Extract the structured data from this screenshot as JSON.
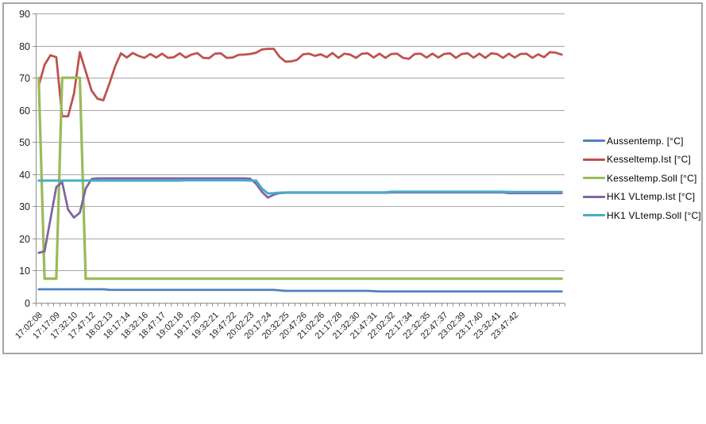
{
  "chart_data": {
    "type": "line",
    "title": "",
    "xlabel": "",
    "ylabel": "",
    "ylim": [
      0,
      90
    ],
    "y_ticks": [
      0,
      10,
      20,
      30,
      40,
      50,
      60,
      70,
      80,
      90
    ],
    "grid": true,
    "legend_position": "right",
    "x_points": 90,
    "label_every": 3,
    "x_labels": [
      "17:02:08",
      "17:17:09",
      "17:32:10",
      "17:47:12",
      "18:02:13",
      "18:17:14",
      "18:32:16",
      "18:47:17",
      "19:02:18",
      "19:17:20",
      "19:32:21",
      "19:47:22",
      "20:02:23",
      "20:17:24",
      "20:32:25",
      "20:47:26",
      "21:02:26",
      "21:17:28",
      "21:32:30",
      "21:47:31",
      "22:02:32",
      "22:17:34",
      "22:32:35",
      "22:47:37",
      "23:02:39",
      "23:17:40",
      "23:32:41",
      "23:47:42"
    ],
    "series": [
      {
        "key": "aussentemp",
        "name": "Aussentemp. [°C]",
        "color": "#4F81BD",
        "values": [
          4.2,
          4.2,
          4.2,
          4.2,
          4.2,
          4.2,
          4.2,
          4.2,
          4.2,
          4.2,
          4.2,
          4.2,
          4.05,
          4,
          4,
          4,
          4,
          4,
          4,
          4,
          4,
          4,
          4,
          4,
          4,
          4,
          4,
          4,
          4,
          4,
          4,
          4,
          4,
          4,
          4,
          4,
          4,
          4,
          4,
          4,
          4,
          3.85,
          3.7,
          3.7,
          3.7,
          3.7,
          3.7,
          3.7,
          3.7,
          3.7,
          3.7,
          3.7,
          3.7,
          3.7,
          3.7,
          3.7,
          3.7,
          3.6,
          3.5,
          3.5,
          3.5,
          3.5,
          3.5,
          3.5,
          3.5,
          3.5,
          3.5,
          3.5,
          3.5,
          3.5,
          3.5,
          3.5,
          3.5,
          3.5,
          3.5,
          3.5,
          3.5,
          3.5,
          3.5,
          3.5,
          3.5,
          3.5,
          3.5,
          3.5,
          3.5,
          3.5,
          3.5,
          3.5,
          3.5,
          3.5
        ]
      },
      {
        "key": "kesseltemp-ist",
        "name": "Kesseltemp.Ist [°C]",
        "color": "#C0504D",
        "values": [
          67.5,
          74,
          77,
          76.4,
          58,
          58,
          65,
          78,
          72,
          66,
          63.5,
          63,
          68,
          73.5,
          77.6,
          76.3,
          77.7,
          76.8,
          76.2,
          77.4,
          76.3,
          77.5,
          76.2,
          76.4,
          77.6,
          76.3,
          77.2,
          77.7,
          76.2,
          76.1,
          77.5,
          77.6,
          76.2,
          76.3,
          77.1,
          77.2,
          77.4,
          77.8,
          78.8,
          79,
          79,
          76.5,
          75,
          75.1,
          75.6,
          77.3,
          77.5,
          76.8,
          77.3,
          76.4,
          77.7,
          76.2,
          77.5,
          77.2,
          76.2,
          77.5,
          77.6,
          76.3,
          77.5,
          76.2,
          77.4,
          77.5,
          76.2,
          75.9,
          77.4,
          77.5,
          76.3,
          77.5,
          76.3,
          77.4,
          77.6,
          76.2,
          77.4,
          77.6,
          76.3,
          77.5,
          76.2,
          77.6,
          77.4,
          76.2,
          77.5,
          76.3,
          77.4,
          77.5,
          76.2,
          77.3,
          76.4,
          78,
          77.8,
          77.2
        ]
      },
      {
        "key": "kesseltemp-soll",
        "name": "Kesseltemp.Soll [°C]",
        "color": "#9BBB59",
        "values": [
          70,
          7.5,
          7.5,
          7.5,
          70,
          70,
          70,
          70,
          7.5,
          7.5,
          7.5,
          7.5,
          7.5,
          7.5,
          7.5,
          7.5,
          7.5,
          7.5,
          7.5,
          7.5,
          7.5,
          7.5,
          7.5,
          7.5,
          7.5,
          7.5,
          7.5,
          7.5,
          7.5,
          7.5,
          7.5,
          7.5,
          7.5,
          7.5,
          7.5,
          7.5,
          7.5,
          7.5,
          7.5,
          7.5,
          7.5,
          7.5,
          7.5,
          7.5,
          7.5,
          7.5,
          7.5,
          7.5,
          7.5,
          7.5,
          7.5,
          7.5,
          7.5,
          7.5,
          7.5,
          7.5,
          7.5,
          7.5,
          7.5,
          7.5,
          7.5,
          7.5,
          7.5,
          7.5,
          7.5,
          7.5,
          7.5,
          7.5,
          7.5,
          7.5,
          7.5,
          7.5,
          7.5,
          7.5,
          7.5,
          7.5,
          7.5,
          7.5,
          7.5,
          7.5,
          7.5,
          7.5,
          7.5,
          7.5,
          7.5,
          7.5,
          7.5,
          7.5,
          7.5,
          7.5
        ]
      },
      {
        "key": "hk1-vltemp-ist",
        "name": "HK1 VLtemp.Ist [°C]",
        "color": "#8064A2",
        "values": [
          15.5,
          16,
          26,
          36,
          37.5,
          29,
          26.5,
          28,
          35.5,
          38.5,
          38.7,
          38.7,
          38.7,
          38.7,
          38.7,
          38.7,
          38.7,
          38.7,
          38.7,
          38.7,
          38.7,
          38.7,
          38.7,
          38.7,
          38.7,
          38.7,
          38.7,
          38.7,
          38.7,
          38.7,
          38.7,
          38.7,
          38.7,
          38.7,
          38.7,
          38.7,
          38.6,
          37,
          34.5,
          32.7,
          33.6,
          34.1,
          34.2,
          34.2,
          34.2,
          34.2,
          34.2,
          34.2,
          34.2,
          34.2,
          34.2,
          34.2,
          34.2,
          34.2,
          34.2,
          34.2,
          34.2,
          34.2,
          34.2,
          34.2,
          34.3,
          34.3,
          34.3,
          34.3,
          34.3,
          34.3,
          34.3,
          34.3,
          34.3,
          34.3,
          34.3,
          34.3,
          34.3,
          34.3,
          34.3,
          34.3,
          34.3,
          34.3,
          34.3,
          34.3,
          34.1,
          34.1,
          34.1,
          34.1,
          34.1,
          34.1,
          34.1,
          34.1,
          34.1,
          34.1
        ]
      },
      {
        "key": "hk1-vltemp-soll",
        "name": "HK1 VLtemp.Soll [°C]",
        "color": "#4BACC6",
        "values": [
          38,
          38,
          38,
          38,
          38,
          38,
          38,
          38,
          38,
          38,
          38,
          38,
          38,
          38,
          38,
          38,
          38,
          38,
          38,
          38,
          38,
          38,
          38,
          38,
          38,
          38.1,
          38.1,
          38.1,
          38.1,
          38.1,
          38.1,
          38.1,
          38.1,
          38.1,
          38.1,
          38.1,
          38,
          38,
          35.5,
          34,
          34.1,
          34.25,
          34.3,
          34.35,
          34.35,
          34.35,
          34.35,
          34.35,
          34.35,
          34.35,
          34.35,
          34.35,
          34.35,
          34.35,
          34.35,
          34.35,
          34.35,
          34.35,
          34.35,
          34.35,
          34.55,
          34.55,
          34.55,
          34.55,
          34.55,
          34.55,
          34.55,
          34.55,
          34.55,
          34.55,
          34.55,
          34.55,
          34.55,
          34.55,
          34.55,
          34.55,
          34.55,
          34.55,
          34.55,
          34.55,
          34.45,
          34.45,
          34.45,
          34.45,
          34.45,
          34.45,
          34.45,
          34.45,
          34.45,
          34.45
        ]
      }
    ]
  }
}
